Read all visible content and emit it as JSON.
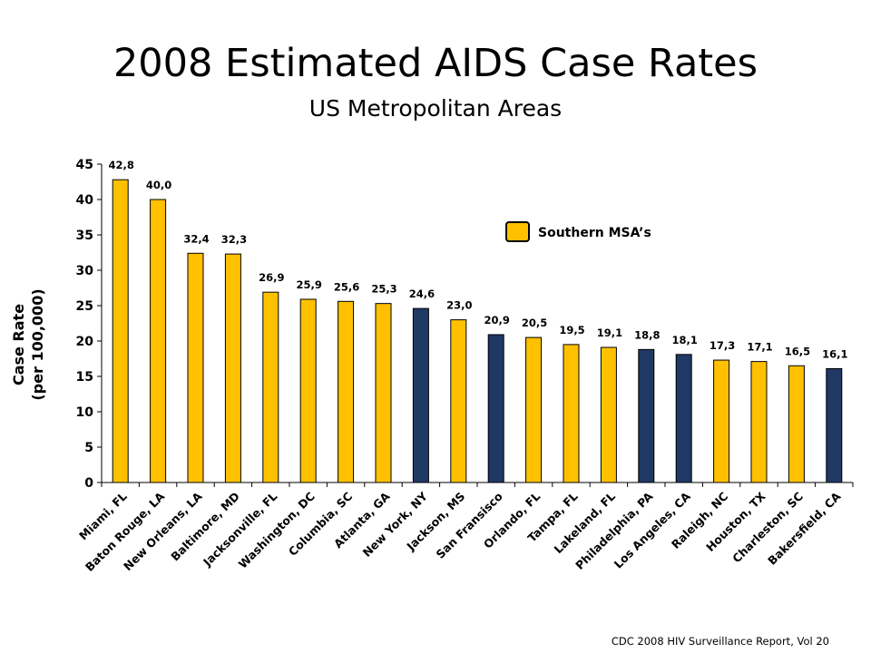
{
  "title": "2008 Estimated AIDS Case Rates",
  "subtitle": "US Metropolitan Areas",
  "footer": "CDC 2008 HIV Surveillance Report, Vol 20",
  "colors": {
    "southern": "#FFC000",
    "other": "#1F3864",
    "outline": "#000000"
  },
  "chart_data": {
    "type": "bar",
    "ylabel": [
      "Case Rate",
      "(per 100,000)"
    ],
    "ylim": [
      0,
      45
    ],
    "yticks": [
      0,
      5,
      10,
      15,
      20,
      25,
      30,
      35,
      40,
      45
    ],
    "legend": {
      "label": "Southern MSA’s",
      "placement": "top-right"
    },
    "categories": [
      "Miami, FL",
      "Baton Rouge, LA",
      "New Orleans, LA",
      "Baltimore, MD",
      "Jacksonville, FL",
      "Washington, DC",
      "Columbia, SC",
      "Atlanta, GA",
      "New York, NY",
      "Jackson, MS",
      "San Fransisco",
      "Orlando, FL",
      "Tampa, FL",
      "Lakeland, FL",
      "Philadelphia, PA",
      "Los Angeles, CA",
      "Raleigh, NC",
      "Houston, TX",
      "Charleston, SC",
      "Bakersfield, CA"
    ],
    "values": [
      42.8,
      40.0,
      32.4,
      32.3,
      26.9,
      25.9,
      25.6,
      25.3,
      24.6,
      23.0,
      20.9,
      20.5,
      19.5,
      19.1,
      18.8,
      18.1,
      17.3,
      17.1,
      16.5,
      16.1
    ],
    "value_labels": [
      "42,8",
      "40,0",
      "32,4",
      "32,3",
      "26,9",
      "25,9",
      "25,6",
      "25,3",
      "24,6",
      "23,0",
      "20,9",
      "20,5",
      "19,5",
      "19,1",
      "18,8",
      "18,1",
      "17,3",
      "17,1",
      "16,5",
      "16,1"
    ],
    "southern": [
      true,
      true,
      true,
      true,
      true,
      true,
      true,
      true,
      false,
      true,
      false,
      true,
      true,
      true,
      false,
      false,
      true,
      true,
      true,
      false
    ]
  }
}
